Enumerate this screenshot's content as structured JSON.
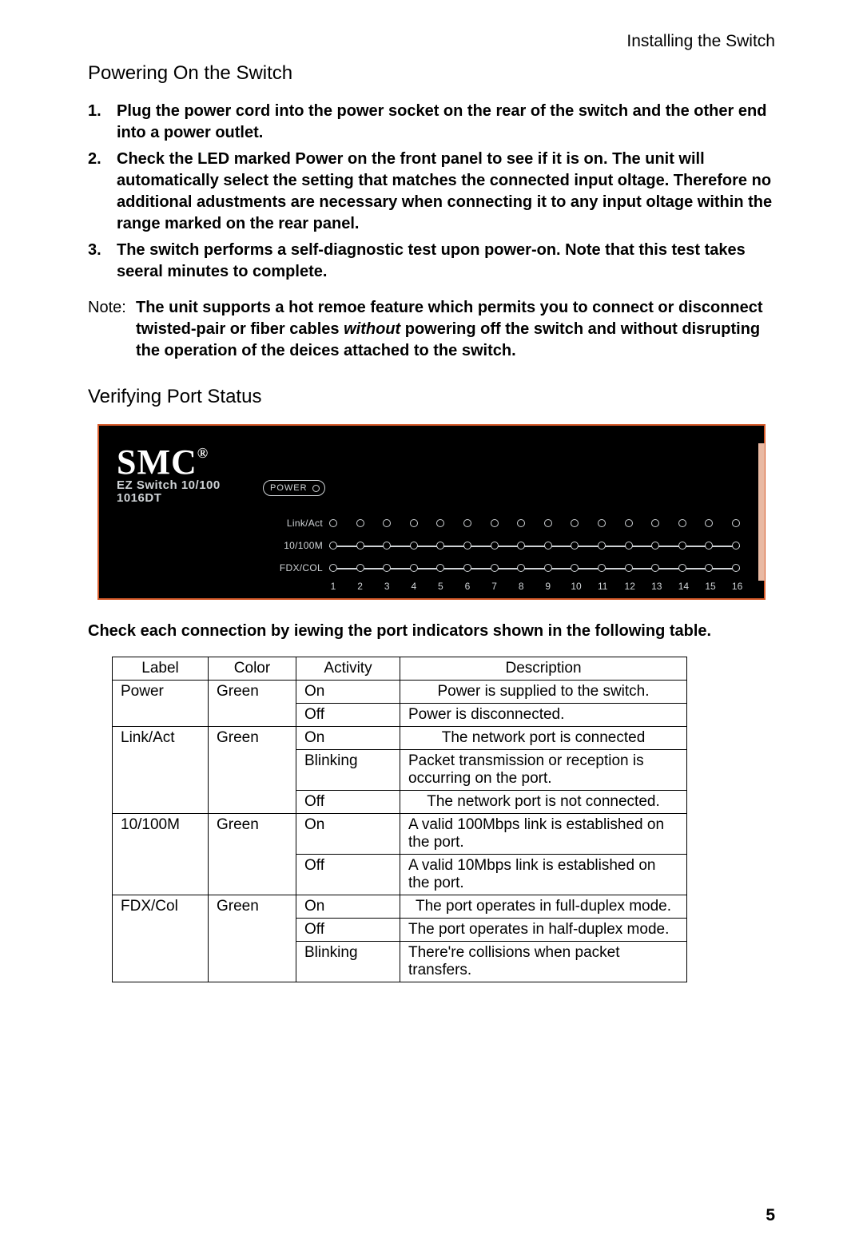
{
  "header": {
    "section": "Installing the Switch"
  },
  "h_power": "Powering On the Switch",
  "steps": [
    {
      "n": "1.",
      "t": "Plug the power cord into the power socket on the rear of the switch and the other end into a power outlet."
    },
    {
      "n": "2.",
      "t": "Check the LED marked Power on the front panel to see if it is on. The unit will automatically select the setting that matches the connected input oltage. Therefore no additional adustments are necessary when connecting it to any input oltage within the range marked on the rear panel."
    },
    {
      "n": "3.",
      "t": "The switch performs a self-diagnostic test upon power-on. Note that this test takes seeral minutes to complete."
    }
  ],
  "note": {
    "label": "Note:",
    "pre": "The unit supports a hot remoe feature which permits you to connect or disconnect twisted-pair or fiber cables",
    "italic": "without",
    "post": " powering off the switch and without disrupting the operation of the deices attached to the switch."
  },
  "h_verify": "Verifying Port Status",
  "panel": {
    "brand": "SMC",
    "reg": "®",
    "model_line1": "EZ Switch 10/100",
    "model_line2": "1016DT",
    "power_label": "POWER",
    "row_labels": [
      "Link/Act",
      "10/100M",
      "FDX/COL"
    ],
    "port_numbers": [
      "1",
      "2",
      "3",
      "4",
      "5",
      "6",
      "7",
      "8",
      "9",
      "10",
      "11",
      "12",
      "13",
      "14",
      "15",
      "16"
    ],
    "colors": {
      "bg": "#000000",
      "border": "#d65a2a",
      "fg": "#cfd3d6",
      "edge": "#e9b9a3"
    }
  },
  "check_line": "Check each connection by iewing the port indicators shown in the following table.",
  "table": {
    "headers": [
      "Label",
      "Color",
      "Activity",
      "Description"
    ],
    "groups": [
      {
        "label": "Power",
        "color": "Green",
        "rows": [
          {
            "activity": "On",
            "desc": "Power is supplied to the switch.",
            "desc_align": "center"
          },
          {
            "activity": "Off",
            "desc": "Power is disconnected."
          }
        ]
      },
      {
        "label": "Link/Act",
        "color": "Green",
        "rows": [
          {
            "activity": "On",
            "desc": "The network port is connected",
            "desc_align": "center"
          },
          {
            "activity": "Blinking",
            "desc": "Packet transmission or reception is occurring on the port."
          },
          {
            "activity": "Off",
            "desc": "The network port is not connected.",
            "desc_align": "center"
          }
        ]
      },
      {
        "label": "10/100M",
        "color": "Green",
        "rows": [
          {
            "activity": "On",
            "desc": "A valid 100Mbps link is established on the port."
          },
          {
            "activity": "Off",
            "desc": "A valid 10Mbps link is established on the port."
          }
        ]
      },
      {
        "label": "FDX/Col",
        "color": "Green",
        "rows": [
          {
            "activity": "On",
            "desc": "The port operates in full-duplex mode.",
            "desc_align": "center"
          },
          {
            "activity": "Off",
            "desc": "The port operates in half-duplex mode."
          },
          {
            "activity": "Blinking",
            "desc": "There're collisions when packet transfers."
          }
        ]
      }
    ]
  },
  "page_number": "5"
}
